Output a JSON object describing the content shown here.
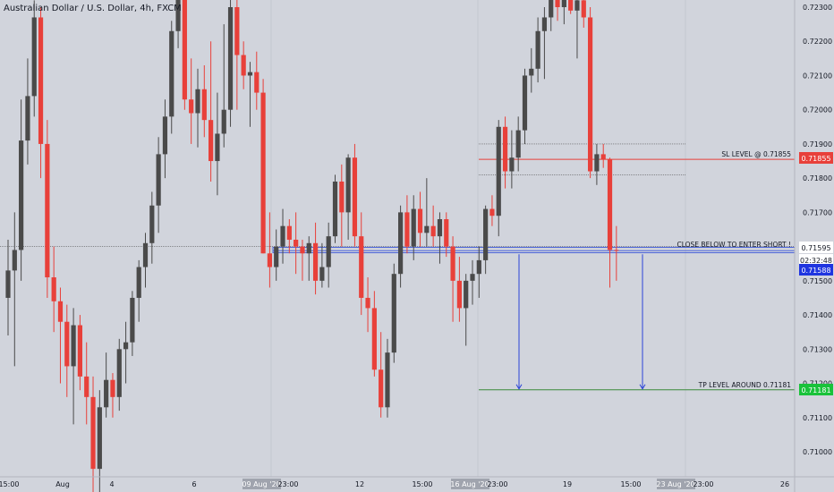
{
  "header": {
    "title": "Australian Dollar / U.S. Dollar, 4h, FXCM"
  },
  "colors": {
    "background": "#d1d4dc",
    "up": "#4a4a4a",
    "down": "#e8403a",
    "sl_line": "#e8403a",
    "entry_zone": "#4a63d9",
    "tp_line": "#3a8a3a",
    "tp_badge": "#19c23a",
    "price_badge": "#1f35e0"
  },
  "chart_data": {
    "type": "candlestick",
    "title": "Australian Dollar / U.S. Dollar, 4h, FXCM",
    "ylim": [
      0.7095,
      0.7235
    ],
    "y_ticks": [
      "0.72300",
      "0.72200",
      "0.72100",
      "0.72000",
      "0.71900",
      "0.71800",
      "0.71700",
      "0.71600",
      "0.71500",
      "0.71400",
      "0.71300",
      "0.71200",
      "0.71100",
      "0.71000"
    ],
    "x_ticks": [
      "15:00",
      "Aug",
      "4",
      "6",
      "09 Aug '20",
      "23:00",
      "12",
      "15:00",
      "16 Aug '20",
      "23:00",
      "19",
      "15:00",
      "23 Aug '20",
      "23:00",
      "26"
    ],
    "annotations": {
      "sl_label": "SL LEVEL @ 0.71855",
      "entry_label": "CLOSE BELOW TO ENTER SHORT !",
      "tp_label": "TP LEVEL AROUND 0.71181"
    },
    "price_labels": {
      "sl": "0.71855",
      "entry": "0.71595",
      "countdown": "02:32:48",
      "last": "0.71588",
      "tp": "0.71181"
    },
    "levels": {
      "sl": 0.71855,
      "entry": 0.71595,
      "last": 0.71588,
      "tp": 0.71181,
      "dotted_upper": 0.719,
      "dotted_lower": 0.7181
    },
    "candles": [
      {
        "o": 0.7145,
        "h": 0.7162,
        "l": 0.7134,
        "c": 0.7153
      },
      {
        "o": 0.7153,
        "h": 0.717,
        "l": 0.7125,
        "c": 0.7159
      },
      {
        "o": 0.7159,
        "h": 0.7203,
        "l": 0.715,
        "c": 0.7191
      },
      {
        "o": 0.7191,
        "h": 0.7215,
        "l": 0.7184,
        "c": 0.7204
      },
      {
        "o": 0.7204,
        "h": 0.7232,
        "l": 0.7198,
        "c": 0.7227
      },
      {
        "o": 0.7227,
        "h": 0.723,
        "l": 0.718,
        "c": 0.719
      },
      {
        "o": 0.719,
        "h": 0.7197,
        "l": 0.7145,
        "c": 0.7151
      },
      {
        "o": 0.7151,
        "h": 0.716,
        "l": 0.7135,
        "c": 0.7144
      },
      {
        "o": 0.7144,
        "h": 0.7148,
        "l": 0.712,
        "c": 0.7138
      },
      {
        "o": 0.7138,
        "h": 0.7143,
        "l": 0.7116,
        "c": 0.7125
      },
      {
        "o": 0.7125,
        "h": 0.7142,
        "l": 0.7108,
        "c": 0.7137
      },
      {
        "o": 0.7137,
        "h": 0.714,
        "l": 0.7118,
        "c": 0.7122
      },
      {
        "o": 0.7122,
        "h": 0.7132,
        "l": 0.7108,
        "c": 0.7116
      },
      {
        "o": 0.7116,
        "h": 0.7122,
        "l": 0.7085,
        "c": 0.7095
      },
      {
        "o": 0.7095,
        "h": 0.7118,
        "l": 0.7088,
        "c": 0.7113
      },
      {
        "o": 0.7113,
        "h": 0.7129,
        "l": 0.711,
        "c": 0.7121
      },
      {
        "o": 0.7121,
        "h": 0.7123,
        "l": 0.711,
        "c": 0.7116
      },
      {
        "o": 0.7116,
        "h": 0.7133,
        "l": 0.7112,
        "c": 0.713
      },
      {
        "o": 0.713,
        "h": 0.7138,
        "l": 0.712,
        "c": 0.7132
      },
      {
        "o": 0.7132,
        "h": 0.7147,
        "l": 0.7128,
        "c": 0.7145
      },
      {
        "o": 0.7145,
        "h": 0.7156,
        "l": 0.7138,
        "c": 0.7154
      },
      {
        "o": 0.7154,
        "h": 0.7164,
        "l": 0.7148,
        "c": 0.7161
      },
      {
        "o": 0.7161,
        "h": 0.7176,
        "l": 0.7155,
        "c": 0.7172
      },
      {
        "o": 0.7172,
        "h": 0.7192,
        "l": 0.7164,
        "c": 0.7187
      },
      {
        "o": 0.7187,
        "h": 0.7203,
        "l": 0.718,
        "c": 0.7198
      },
      {
        "o": 0.7198,
        "h": 0.7226,
        "l": 0.7193,
        "c": 0.7223
      },
      {
        "o": 0.7223,
        "h": 0.7235,
        "l": 0.7218,
        "c": 0.7233
      },
      {
        "o": 0.7233,
        "h": 0.7235,
        "l": 0.72,
        "c": 0.7203
      },
      {
        "o": 0.7203,
        "h": 0.7215,
        "l": 0.719,
        "c": 0.7199
      },
      {
        "o": 0.7199,
        "h": 0.7212,
        "l": 0.7189,
        "c": 0.7206
      },
      {
        "o": 0.7206,
        "h": 0.7213,
        "l": 0.7192,
        "c": 0.7197
      },
      {
        "o": 0.7197,
        "h": 0.722,
        "l": 0.7179,
        "c": 0.7185
      },
      {
        "o": 0.7185,
        "h": 0.7205,
        "l": 0.7175,
        "c": 0.7193
      },
      {
        "o": 0.7193,
        "h": 0.7225,
        "l": 0.7189,
        "c": 0.72
      },
      {
        "o": 0.72,
        "h": 0.7235,
        "l": 0.7195,
        "c": 0.723
      },
      {
        "o": 0.723,
        "h": 0.7233,
        "l": 0.72,
        "c": 0.7216
      },
      {
        "o": 0.7216,
        "h": 0.722,
        "l": 0.7206,
        "c": 0.721
      },
      {
        "o": 0.721,
        "h": 0.7214,
        "l": 0.7195,
        "c": 0.7211
      },
      {
        "o": 0.7211,
        "h": 0.7217,
        "l": 0.72,
        "c": 0.7205
      },
      {
        "o": 0.7205,
        "h": 0.7209,
        "l": 0.7158,
        "c": 0.7158
      },
      {
        "o": 0.7158,
        "h": 0.717,
        "l": 0.7148,
        "c": 0.7154
      },
      {
        "o": 0.7154,
        "h": 0.7165,
        "l": 0.715,
        "c": 0.716
      },
      {
        "o": 0.716,
        "h": 0.7171,
        "l": 0.7155,
        "c": 0.7166
      },
      {
        "o": 0.7166,
        "h": 0.7168,
        "l": 0.7158,
        "c": 0.7162
      },
      {
        "o": 0.7162,
        "h": 0.717,
        "l": 0.7152,
        "c": 0.716
      },
      {
        "o": 0.716,
        "h": 0.7162,
        "l": 0.715,
        "c": 0.7158
      },
      {
        "o": 0.7158,
        "h": 0.7163,
        "l": 0.715,
        "c": 0.7161
      },
      {
        "o": 0.7161,
        "h": 0.7167,
        "l": 0.7146,
        "c": 0.715
      },
      {
        "o": 0.715,
        "h": 0.7161,
        "l": 0.7148,
        "c": 0.7154
      },
      {
        "o": 0.7154,
        "h": 0.7167,
        "l": 0.7148,
        "c": 0.7163
      },
      {
        "o": 0.7163,
        "h": 0.7181,
        "l": 0.7161,
        "c": 0.7179
      },
      {
        "o": 0.7179,
        "h": 0.7184,
        "l": 0.716,
        "c": 0.717
      },
      {
        "o": 0.717,
        "h": 0.7187,
        "l": 0.7162,
        "c": 0.7186
      },
      {
        "o": 0.7186,
        "h": 0.719,
        "l": 0.716,
        "c": 0.7163
      },
      {
        "o": 0.7163,
        "h": 0.717,
        "l": 0.714,
        "c": 0.7145
      },
      {
        "o": 0.7145,
        "h": 0.7151,
        "l": 0.7135,
        "c": 0.7142
      },
      {
        "o": 0.7142,
        "h": 0.7147,
        "l": 0.7122,
        "c": 0.7124
      },
      {
        "o": 0.7124,
        "h": 0.7135,
        "l": 0.711,
        "c": 0.7113
      },
      {
        "o": 0.7113,
        "h": 0.7133,
        "l": 0.711,
        "c": 0.7129
      },
      {
        "o": 0.7129,
        "h": 0.7155,
        "l": 0.7126,
        "c": 0.7152
      },
      {
        "o": 0.7152,
        "h": 0.7172,
        "l": 0.7148,
        "c": 0.717
      },
      {
        "o": 0.717,
        "h": 0.7175,
        "l": 0.7158,
        "c": 0.716
      },
      {
        "o": 0.716,
        "h": 0.7175,
        "l": 0.7156,
        "c": 0.7171
      },
      {
        "o": 0.7171,
        "h": 0.7176,
        "l": 0.716,
        "c": 0.7164
      },
      {
        "o": 0.7164,
        "h": 0.718,
        "l": 0.716,
        "c": 0.7166
      },
      {
        "o": 0.7166,
        "h": 0.7172,
        "l": 0.716,
        "c": 0.7163
      },
      {
        "o": 0.7163,
        "h": 0.717,
        "l": 0.7155,
        "c": 0.7168
      },
      {
        "o": 0.7168,
        "h": 0.717,
        "l": 0.7157,
        "c": 0.716
      },
      {
        "o": 0.716,
        "h": 0.7163,
        "l": 0.7138,
        "c": 0.715
      },
      {
        "o": 0.715,
        "h": 0.7157,
        "l": 0.7138,
        "c": 0.7142
      },
      {
        "o": 0.7142,
        "h": 0.7152,
        "l": 0.7131,
        "c": 0.715
      },
      {
        "o": 0.715,
        "h": 0.7156,
        "l": 0.7143,
        "c": 0.7152
      },
      {
        "o": 0.7152,
        "h": 0.716,
        "l": 0.7145,
        "c": 0.7156
      },
      {
        "o": 0.7156,
        "h": 0.7172,
        "l": 0.7152,
        "c": 0.7171
      },
      {
        "o": 0.7171,
        "h": 0.7175,
        "l": 0.7166,
        "c": 0.7169
      },
      {
        "o": 0.7169,
        "h": 0.7197,
        "l": 0.7163,
        "c": 0.7195
      },
      {
        "o": 0.7195,
        "h": 0.7198,
        "l": 0.7177,
        "c": 0.7182
      },
      {
        "o": 0.7182,
        "h": 0.7194,
        "l": 0.7177,
        "c": 0.7186
      },
      {
        "o": 0.7186,
        "h": 0.7198,
        "l": 0.7182,
        "c": 0.7194
      },
      {
        "o": 0.7194,
        "h": 0.7212,
        "l": 0.719,
        "c": 0.721
      },
      {
        "o": 0.721,
        "h": 0.7218,
        "l": 0.7205,
        "c": 0.7212
      },
      {
        "o": 0.7212,
        "h": 0.7227,
        "l": 0.7208,
        "c": 0.7223
      },
      {
        "o": 0.7223,
        "h": 0.723,
        "l": 0.7209,
        "c": 0.7227
      },
      {
        "o": 0.7227,
        "h": 0.7236,
        "l": 0.7223,
        "c": 0.7234
      },
      {
        "o": 0.7234,
        "h": 0.7235,
        "l": 0.7226,
        "c": 0.723
      },
      {
        "o": 0.723,
        "h": 0.7235,
        "l": 0.7225,
        "c": 0.7233
      },
      {
        "o": 0.7233,
        "h": 0.7236,
        "l": 0.7228,
        "c": 0.7229
      },
      {
        "o": 0.7229,
        "h": 0.7234,
        "l": 0.7215,
        "c": 0.7232
      },
      {
        "o": 0.7232,
        "h": 0.7235,
        "l": 0.7224,
        "c": 0.7227
      },
      {
        "o": 0.7227,
        "h": 0.723,
        "l": 0.718,
        "c": 0.7182
      },
      {
        "o": 0.7182,
        "h": 0.719,
        "l": 0.7178,
        "c": 0.7187
      },
      {
        "o": 0.7187,
        "h": 0.719,
        "l": 0.7183,
        "c": 0.71855
      },
      {
        "o": 0.71855,
        "h": 0.7186,
        "l": 0.7148,
        "c": 0.7159
      },
      {
        "o": 0.7159,
        "h": 0.7166,
        "l": 0.715,
        "c": 0.71588
      }
    ]
  }
}
